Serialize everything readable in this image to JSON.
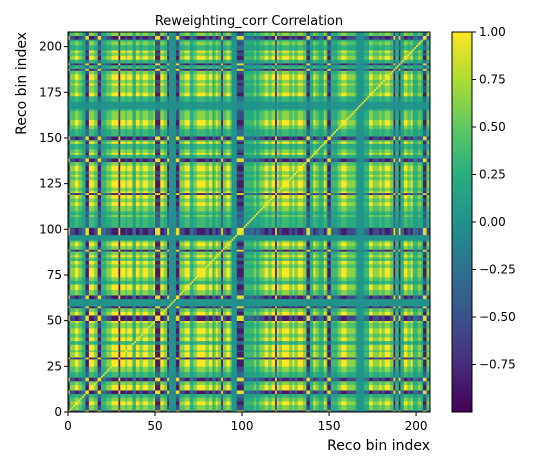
{
  "chart_data": {
    "type": "heatmap",
    "title": "Reweighting_corr Correlation",
    "xlabel": "Reco bin index",
    "ylabel": "Reco bin index",
    "n_bins": 208,
    "xlim": [
      0,
      208
    ],
    "ylim": [
      0,
      208
    ],
    "x_ticks": [
      0,
      50,
      100,
      150,
      200
    ],
    "y_ticks": [
      0,
      25,
      50,
      75,
      100,
      125,
      150,
      175,
      200
    ],
    "colorbar": {
      "colormap": "viridis",
      "range": [
        -1.0,
        1.0
      ],
      "ticks": [
        1.0,
        0.75,
        0.5,
        0.25,
        0.0,
        -0.25,
        -0.5,
        -0.75
      ],
      "tick_labels": [
        "1.00",
        "0.75",
        "0.50",
        "0.25",
        "0.00",
        "−0.25",
        "−0.50",
        "−0.75"
      ]
    },
    "anticorrelated_bins": [
      0,
      10,
      11,
      17,
      18,
      29,
      50,
      51,
      52,
      57,
      62,
      63,
      88,
      97,
      98,
      99,
      100,
      119,
      137,
      138,
      149,
      150,
      187,
      190,
      204,
      205
    ],
    "weak_bins": [
      1,
      2,
      3,
      6,
      7,
      15,
      16,
      22,
      23,
      24,
      33,
      41,
      42,
      46,
      47,
      48,
      55,
      56,
      64,
      65,
      66,
      72,
      73,
      79,
      80,
      84,
      86,
      87,
      89,
      90,
      93,
      107,
      110,
      111,
      112,
      115,
      116,
      121,
      122,
      127,
      128,
      130,
      131,
      135,
      136,
      142,
      143,
      148,
      155,
      156,
      160,
      161,
      162,
      163,
      164,
      175,
      176,
      177,
      178,
      180,
      181,
      185,
      186,
      195,
      196,
      201,
      202,
      206,
      207
    ],
    "low_bins": [
      8,
      9,
      19,
      20,
      21,
      37,
      38,
      70,
      71,
      83,
      101,
      102,
      103,
      104,
      105,
      106,
      108,
      109,
      139,
      140,
      144,
      145,
      146,
      151,
      152,
      153,
      154,
      165,
      170,
      171,
      172,
      188,
      189,
      191,
      192,
      198,
      199,
      200,
      203
    ],
    "uncorrelated_bins": [
      58,
      59,
      60,
      61,
      94,
      95,
      96,
      166,
      167,
      168,
      169
    ]
  }
}
